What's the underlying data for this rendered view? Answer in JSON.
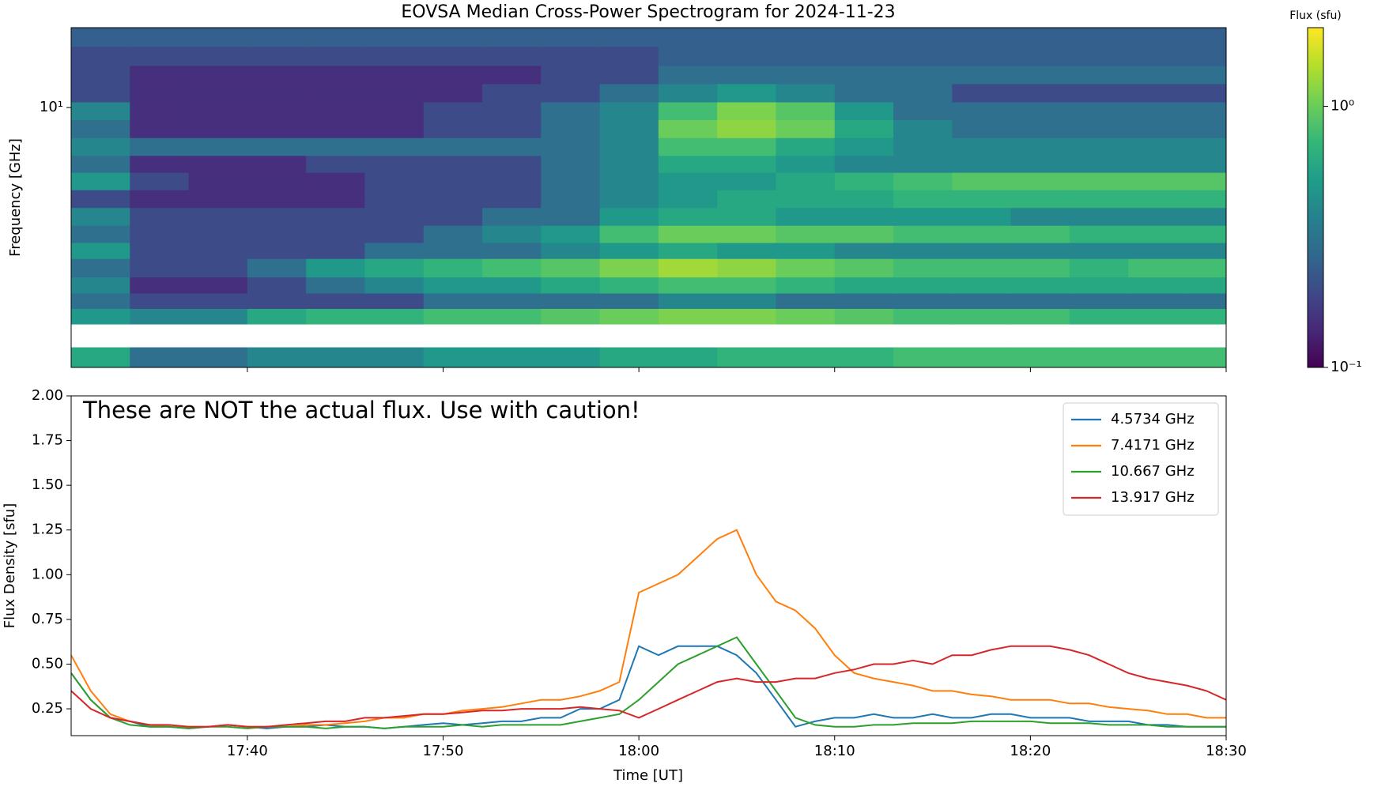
{
  "chart_data": [
    {
      "type": "heatmap",
      "title": "EOVSA Median Cross-Power Spectrogram for 2024-11-23",
      "y_label": "Frequency [GHz]",
      "xlim": [
        "17:31",
        "18:30"
      ],
      "ylim": [
        1.05,
        20
      ],
      "ylog": true,
      "yticks": [
        {
          "value": 10,
          "label": "10¹"
        }
      ],
      "x": [
        "17:31",
        "17:34",
        "17:37",
        "17:40",
        "17:43",
        "17:46",
        "17:49",
        "17:52",
        "17:55",
        "17:58",
        "18:01",
        "18:04",
        "18:07",
        "18:10",
        "18:13",
        "18:16",
        "18:19",
        "18:22",
        "18:25",
        "18:28",
        "18:30"
      ],
      "y": [
        1.05,
        1.25,
        1.53,
        1.75,
        2.0,
        2.3,
        2.7,
        3.1,
        3.6,
        4.2,
        4.9,
        5.7,
        6.6,
        7.7,
        9.0,
        10.5,
        12.3,
        14.4,
        17.0,
        20
      ],
      "values": [
        [
          0.6,
          0.3,
          0.3,
          0.4,
          0.4,
          0.4,
          0.5,
          0.5,
          0.5,
          0.6,
          0.6,
          0.7,
          0.7,
          0.7,
          0.8,
          0.8,
          0.8,
          0.8,
          0.8,
          0.8
        ],
        [
          null,
          null,
          null,
          null,
          null,
          null,
          null,
          null,
          null,
          null,
          null,
          null,
          null,
          null,
          null,
          null,
          null,
          null,
          null,
          null
        ],
        [
          0.5,
          0.4,
          0.4,
          0.6,
          0.7,
          0.7,
          0.8,
          0.8,
          0.9,
          1.0,
          1.1,
          1.1,
          1.0,
          0.9,
          0.8,
          0.8,
          0.8,
          0.7,
          0.7,
          0.7
        ],
        [
          0.3,
          0.2,
          0.2,
          0.2,
          0.2,
          0.2,
          0.3,
          0.3,
          0.3,
          0.3,
          0.4,
          0.4,
          0.3,
          0.3,
          0.3,
          0.3,
          0.3,
          0.3,
          0.3,
          0.3
        ],
        [
          0.4,
          0.15,
          0.15,
          0.2,
          0.3,
          0.4,
          0.5,
          0.5,
          0.6,
          0.7,
          0.8,
          0.8,
          0.7,
          0.6,
          0.6,
          0.6,
          0.6,
          0.6,
          0.6,
          0.6
        ],
        [
          0.3,
          0.2,
          0.2,
          0.3,
          0.5,
          0.6,
          0.7,
          0.8,
          0.9,
          1.1,
          1.3,
          1.2,
          1.0,
          0.9,
          0.8,
          0.8,
          0.8,
          0.7,
          0.8,
          0.8
        ],
        [
          0.5,
          0.2,
          0.2,
          0.2,
          0.2,
          0.3,
          0.3,
          0.3,
          0.4,
          0.5,
          0.6,
          0.5,
          0.5,
          0.4,
          0.4,
          0.4,
          0.4,
          0.4,
          0.4,
          0.4
        ],
        [
          0.3,
          0.2,
          0.2,
          0.2,
          0.2,
          0.2,
          0.3,
          0.4,
          0.5,
          0.8,
          1.0,
          1.0,
          0.9,
          0.9,
          0.8,
          0.8,
          0.8,
          0.7,
          0.7,
          0.7
        ],
        [
          0.4,
          0.2,
          0.2,
          0.2,
          0.2,
          0.2,
          0.2,
          0.3,
          0.3,
          0.5,
          0.6,
          0.6,
          0.5,
          0.5,
          0.5,
          0.5,
          0.4,
          0.4,
          0.4,
          0.4
        ],
        [
          0.2,
          0.15,
          0.15,
          0.15,
          0.15,
          0.2,
          0.2,
          0.2,
          0.3,
          0.4,
          0.5,
          0.6,
          0.6,
          0.6,
          0.7,
          0.7,
          0.7,
          0.7,
          0.7,
          0.7
        ],
        [
          0.5,
          0.2,
          0.15,
          0.15,
          0.15,
          0.2,
          0.2,
          0.2,
          0.3,
          0.4,
          0.5,
          0.5,
          0.6,
          0.7,
          0.8,
          0.9,
          0.9,
          0.9,
          0.9,
          0.9
        ],
        [
          0.3,
          0.15,
          0.15,
          0.15,
          0.2,
          0.2,
          0.2,
          0.2,
          0.3,
          0.4,
          0.6,
          0.6,
          0.5,
          0.4,
          0.4,
          0.4,
          0.4,
          0.4,
          0.4,
          0.4
        ],
        [
          0.4,
          0.3,
          0.3,
          0.3,
          0.3,
          0.3,
          0.3,
          0.3,
          0.3,
          0.4,
          0.8,
          0.8,
          0.6,
          0.5,
          0.4,
          0.4,
          0.4,
          0.4,
          0.4,
          0.4
        ],
        [
          0.3,
          0.15,
          0.15,
          0.15,
          0.15,
          0.15,
          0.2,
          0.2,
          0.3,
          0.4,
          1.0,
          1.2,
          1.0,
          0.6,
          0.4,
          0.3,
          0.3,
          0.3,
          0.3,
          0.3
        ],
        [
          0.4,
          0.15,
          0.15,
          0.15,
          0.15,
          0.15,
          0.2,
          0.2,
          0.3,
          0.4,
          0.8,
          1.1,
          0.9,
          0.5,
          0.3,
          0.3,
          0.3,
          0.3,
          0.3,
          0.3
        ],
        [
          0.2,
          0.15,
          0.15,
          0.15,
          0.15,
          0.15,
          0.15,
          0.2,
          0.2,
          0.3,
          0.4,
          0.5,
          0.4,
          0.3,
          0.3,
          0.2,
          0.2,
          0.2,
          0.2,
          0.2
        ],
        [
          0.2,
          0.15,
          0.15,
          0.15,
          0.15,
          0.15,
          0.15,
          0.15,
          0.2,
          0.2,
          0.3,
          0.3,
          0.3,
          0.3,
          0.3,
          0.3,
          0.3,
          0.3,
          0.3,
          0.3
        ],
        [
          0.2,
          0.2,
          0.2,
          0.2,
          0.2,
          0.2,
          0.2,
          0.2,
          0.2,
          0.2,
          0.25,
          0.25,
          0.25,
          0.25,
          0.25,
          0.25,
          0.25,
          0.25,
          0.25,
          0.25
        ],
        [
          0.25,
          0.25,
          0.25,
          0.25,
          0.25,
          0.25,
          0.25,
          0.25,
          0.25,
          0.25,
          0.25,
          0.25,
          0.25,
          0.25,
          0.25,
          0.25,
          0.25,
          0.25,
          0.25,
          0.25
        ]
      ],
      "colormap": "viridis",
      "colorbar": {
        "label": "Flux (sfu)",
        "lim": [
          0.1,
          2
        ],
        "log": true,
        "ticks": [
          {
            "value": 1,
            "label": "10⁰"
          },
          {
            "value": 0.1,
            "label": "10⁻¹"
          }
        ]
      }
    },
    {
      "type": "line",
      "annotation": "These are NOT the actual flux. Use with caution!",
      "x_label": "Time [UT]",
      "y_label": "Flux Density [sfu]",
      "xlim": [
        "17:31",
        "18:30"
      ],
      "xticks": [
        "17:40",
        "17:50",
        "18:00",
        "18:10",
        "18:20",
        "18:30"
      ],
      "ylim": [
        0.1,
        2.0
      ],
      "yticks": [
        {
          "value": 0.25,
          "label": "0.25"
        },
        {
          "value": 0.5,
          "label": "0.50"
        },
        {
          "value": 0.75,
          "label": "0.75"
        },
        {
          "value": 1.0,
          "label": "1.00"
        },
        {
          "value": 1.25,
          "label": "1.25"
        },
        {
          "value": 1.5,
          "label": "1.50"
        },
        {
          "value": 1.75,
          "label": "1.75"
        },
        {
          "value": 2.0,
          "label": "2.00"
        }
      ],
      "legend": "upper right",
      "x": [
        "17:31",
        "17:32",
        "17:33",
        "17:34",
        "17:35",
        "17:36",
        "17:37",
        "17:38",
        "17:39",
        "17:40",
        "17:41",
        "17:42",
        "17:43",
        "17:44",
        "17:45",
        "17:46",
        "17:47",
        "17:48",
        "17:49",
        "17:50",
        "17:51",
        "17:52",
        "17:53",
        "17:54",
        "17:55",
        "17:56",
        "17:57",
        "17:58",
        "17:59",
        "18:00",
        "18:01",
        "18:02",
        "18:03",
        "18:04",
        "18:05",
        "18:06",
        "18:07",
        "18:08",
        "18:09",
        "18:10",
        "18:11",
        "18:12",
        "18:13",
        "18:14",
        "18:15",
        "18:16",
        "18:17",
        "18:18",
        "18:19",
        "18:20",
        "18:21",
        "18:22",
        "18:23",
        "18:24",
        "18:25",
        "18:26",
        "18:27",
        "18:28",
        "18:29",
        "18:30"
      ],
      "series": [
        {
          "name": "4.5734 GHz",
          "color": "#1f77b4",
          "values": [
            0.45,
            0.3,
            0.2,
            0.18,
            0.15,
            0.15,
            0.14,
            0.15,
            0.16,
            0.15,
            0.14,
            0.15,
            0.15,
            0.16,
            0.15,
            0.15,
            0.14,
            0.15,
            0.16,
            0.17,
            0.16,
            0.17,
            0.18,
            0.18,
            0.2,
            0.2,
            0.25,
            0.25,
            0.3,
            0.6,
            0.55,
            0.6,
            0.6,
            0.6,
            0.55,
            0.45,
            0.3,
            0.15,
            0.18,
            0.2,
            0.2,
            0.22,
            0.2,
            0.2,
            0.22,
            0.2,
            0.2,
            0.22,
            0.22,
            0.2,
            0.2,
            0.2,
            0.18,
            0.18,
            0.18,
            0.16,
            0.16,
            0.15,
            0.15,
            0.15
          ]
        },
        {
          "name": "7.4171 GHz",
          "color": "#ff7f0e",
          "values": [
            0.55,
            0.35,
            0.22,
            0.18,
            0.16,
            0.15,
            0.15,
            0.15,
            0.16,
            0.15,
            0.15,
            0.15,
            0.16,
            0.16,
            0.17,
            0.18,
            0.2,
            0.2,
            0.22,
            0.22,
            0.24,
            0.25,
            0.26,
            0.28,
            0.3,
            0.3,
            0.32,
            0.35,
            0.4,
            0.9,
            0.95,
            1.0,
            1.1,
            1.2,
            1.25,
            1.0,
            0.85,
            0.8,
            0.7,
            0.55,
            0.45,
            0.42,
            0.4,
            0.38,
            0.35,
            0.35,
            0.33,
            0.32,
            0.3,
            0.3,
            0.3,
            0.28,
            0.28,
            0.26,
            0.25,
            0.24,
            0.22,
            0.22,
            0.2,
            0.2
          ]
        },
        {
          "name": "10.667 GHz",
          "color": "#2ca02c",
          "values": [
            0.45,
            0.3,
            0.2,
            0.16,
            0.15,
            0.15,
            0.14,
            0.15,
            0.15,
            0.14,
            0.15,
            0.15,
            0.15,
            0.14,
            0.15,
            0.15,
            0.14,
            0.15,
            0.15,
            0.15,
            0.16,
            0.15,
            0.16,
            0.16,
            0.16,
            0.16,
            0.18,
            0.2,
            0.22,
            0.3,
            0.4,
            0.5,
            0.55,
            0.6,
            0.65,
            0.5,
            0.35,
            0.2,
            0.16,
            0.15,
            0.15,
            0.16,
            0.16,
            0.17,
            0.17,
            0.17,
            0.18,
            0.18,
            0.18,
            0.18,
            0.17,
            0.17,
            0.17,
            0.16,
            0.16,
            0.16,
            0.15,
            0.15,
            0.15,
            0.15
          ]
        },
        {
          "name": "13.917 GHz",
          "color": "#d62728",
          "values": [
            0.35,
            0.25,
            0.2,
            0.18,
            0.16,
            0.16,
            0.15,
            0.15,
            0.16,
            0.15,
            0.15,
            0.16,
            0.17,
            0.18,
            0.18,
            0.2,
            0.2,
            0.21,
            0.22,
            0.22,
            0.23,
            0.24,
            0.24,
            0.25,
            0.25,
            0.25,
            0.26,
            0.25,
            0.24,
            0.2,
            0.25,
            0.3,
            0.35,
            0.4,
            0.42,
            0.4,
            0.4,
            0.42,
            0.42,
            0.45,
            0.47,
            0.5,
            0.5,
            0.52,
            0.5,
            0.55,
            0.55,
            0.58,
            0.6,
            0.6,
            0.6,
            0.58,
            0.55,
            0.5,
            0.45,
            0.42,
            0.4,
            0.38,
            0.35,
            0.3
          ]
        }
      ]
    }
  ]
}
